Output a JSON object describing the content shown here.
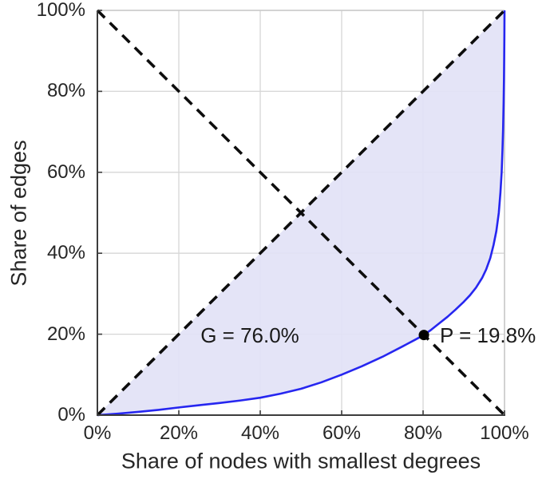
{
  "figure": {
    "background": "#ffffff"
  },
  "chart_data": {
    "type": "line",
    "title": "",
    "xlabel": "Share of nodes with smallest degrees",
    "ylabel": "Share of edges",
    "xlim": [
      0,
      100
    ],
    "ylim": [
      0,
      100
    ],
    "grid": true,
    "x_tick_values": [
      0,
      20,
      40,
      60,
      80,
      100
    ],
    "y_tick_values": [
      0,
      20,
      40,
      60,
      80,
      100
    ],
    "x_tick_labels": [
      "0%",
      "20%",
      "40%",
      "60%",
      "80%",
      "100%"
    ],
    "y_tick_labels_top_to_bottom": [
      "100%",
      "80%",
      "60%",
      "40%",
      "20%",
      "0%"
    ],
    "series": [
      {
        "name": "lorenz-curve",
        "style": "solid",
        "color": "#2626f0",
        "width": 2.6,
        "points": [
          [
            0,
            0
          ],
          [
            5,
            0.35
          ],
          [
            10,
            0.8
          ],
          [
            15,
            1.3
          ],
          [
            20,
            1.9
          ],
          [
            25,
            2.45
          ],
          [
            30,
            3.0
          ],
          [
            35,
            3.6
          ],
          [
            40,
            4.3
          ],
          [
            45,
            5.3
          ],
          [
            50,
            6.5
          ],
          [
            55,
            8.1
          ],
          [
            60,
            10.0
          ],
          [
            65,
            12.1
          ],
          [
            70,
            14.4
          ],
          [
            75,
            17.0
          ],
          [
            78,
            18.6
          ],
          [
            80.2,
            19.8
          ],
          [
            82,
            21.1
          ],
          [
            84,
            22.7
          ],
          [
            86,
            24.3
          ],
          [
            88,
            26.1
          ],
          [
            90,
            28.0
          ],
          [
            91.5,
            29.6
          ],
          [
            93,
            31.5
          ],
          [
            94.5,
            33.9
          ],
          [
            95.5,
            36.0
          ],
          [
            96.5,
            38.8
          ],
          [
            97.3,
            42.0
          ],
          [
            98,
            45.5
          ],
          [
            98.6,
            50.0
          ],
          [
            99,
            55.0
          ],
          [
            99.3,
            60.0
          ],
          [
            99.5,
            65.5
          ],
          [
            99.65,
            70.5
          ],
          [
            99.78,
            77.0
          ],
          [
            99.87,
            83.0
          ],
          [
            99.93,
            89.0
          ],
          [
            99.97,
            94.0
          ],
          [
            100,
            100
          ]
        ]
      },
      {
        "name": "equality-diagonal",
        "style": "dashed",
        "color": "#0d0d0d",
        "width": 3.6,
        "points": [
          [
            0,
            0
          ],
          [
            100,
            100
          ]
        ]
      },
      {
        "name": "anti-diagonal",
        "style": "dashed",
        "color": "#0d0d0d",
        "width": 3.6,
        "points": [
          [
            0,
            100
          ],
          [
            100,
            0
          ]
        ]
      }
    ],
    "fill_between": {
      "upper": "equality-diagonal",
      "lower": "lorenz-curve",
      "color": "rgba(226,226,246,0.93)"
    },
    "marker": {
      "x": 80.2,
      "y": 19.8,
      "radius": 6.5,
      "color": "#000000"
    },
    "annotations": {
      "gini": {
        "label": "G = 76.0%",
        "x": 37.5,
        "y": 19.7
      },
      "pareto": {
        "label": "P = 19.8%",
        "x": 84.1,
        "y": 19.8
      }
    },
    "colors": {
      "grid": "#d6d6d6",
      "spine_dark": "#3c3c3c",
      "spine_light": "#c8c8c8",
      "text": "#262626",
      "curve": "#2626f0",
      "dash": "#0d0d0d",
      "fill": "rgba(226,226,246,0.93)"
    }
  }
}
